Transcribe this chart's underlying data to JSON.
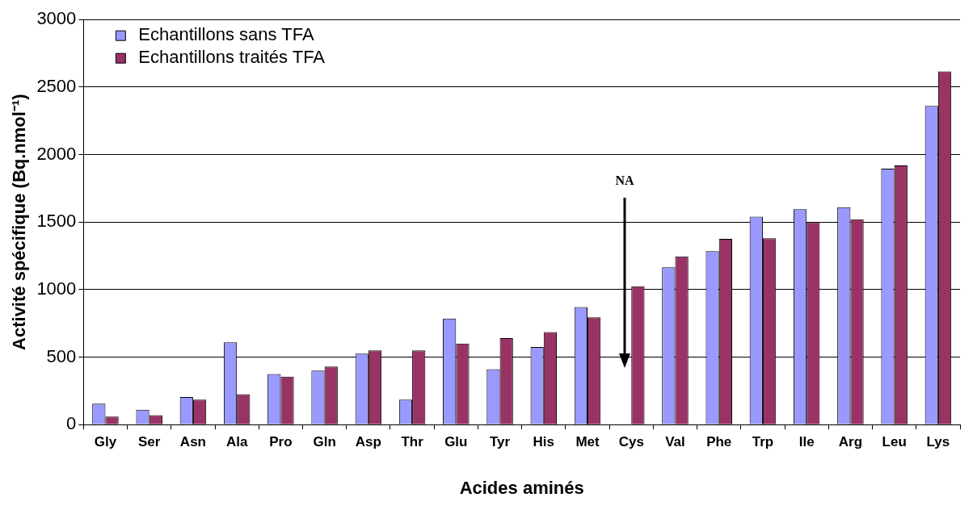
{
  "chart_data": {
    "type": "bar",
    "xlabel": "Acides aminés",
    "ylabel": "Activité spécifique (Bq.nmol⁻¹)",
    "categories": [
      "Gly",
      "Ser",
      "Asn",
      "Ala",
      "Pro",
      "Gln",
      "Asp",
      "Thr",
      "Glu",
      "Tyr",
      "His",
      "Met",
      "Cys",
      "Val",
      "Phe",
      "Trp",
      "Ile",
      "Arg",
      "Leu",
      "Lys"
    ],
    "series": [
      {
        "name": "Echantillons sans TFA",
        "color": "#9999ff",
        "values": [
          155,
          110,
          205,
          610,
          375,
          400,
          525,
          185,
          785,
          410,
          575,
          870,
          null,
          1165,
          1285,
          1540,
          1595,
          1610,
          1895,
          2360
        ]
      },
      {
        "name": "Echantillons traités TFA",
        "color": "#993366",
        "values": [
          60,
          70,
          185,
          225,
          355,
          430,
          550,
          550,
          600,
          640,
          685,
          795,
          1025,
          1245,
          1375,
          1380,
          1500,
          1520,
          1920,
          2615
        ]
      }
    ],
    "ylim": [
      0,
      3000
    ],
    "yticks": [
      0,
      500,
      1000,
      1500,
      2000,
      2500,
      3000
    ],
    "grid": "y",
    "legend": "top left",
    "annotations": [
      "NA"
    ]
  }
}
